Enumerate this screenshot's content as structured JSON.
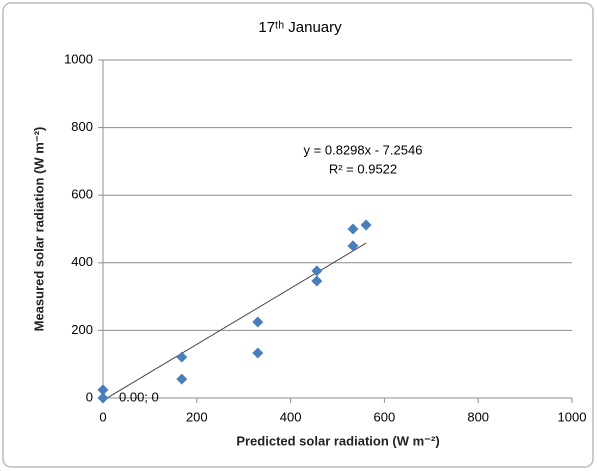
{
  "chart_data": {
    "type": "scatter",
    "title": "17ᵗʰ January",
    "x_label": "Predicted solar radiation (W m⁻²)",
    "y_label": "Measured solar radiation (W m⁻²)",
    "series": [
      {
        "name": "Measured",
        "color": "#4a7ebb",
        "x": [
          0,
          0,
          168,
          168,
          330,
          330,
          456,
          456,
          533,
          533,
          561
        ],
        "values": [
          24,
          0,
          121,
          56,
          225,
          133,
          376,
          346,
          500,
          450,
          512
        ],
        "point_labels": [
          null,
          "0.00; 0",
          null,
          null,
          null,
          null,
          null,
          null,
          null,
          null,
          null
        ]
      }
    ],
    "trendline": {
      "slope": 0.8298,
      "intercept": -7.2546,
      "equation": "y = 0.8298x - 7.2546",
      "r_squared": "R² = 0.9522"
    },
    "xlim": [
      0,
      1000
    ],
    "xticks": [
      0,
      200,
      400,
      600,
      800,
      1000
    ],
    "ylim": [
      0,
      1000
    ],
    "yticks": [
      0,
      200,
      400,
      600,
      800,
      1000
    ],
    "grid": true
  }
}
